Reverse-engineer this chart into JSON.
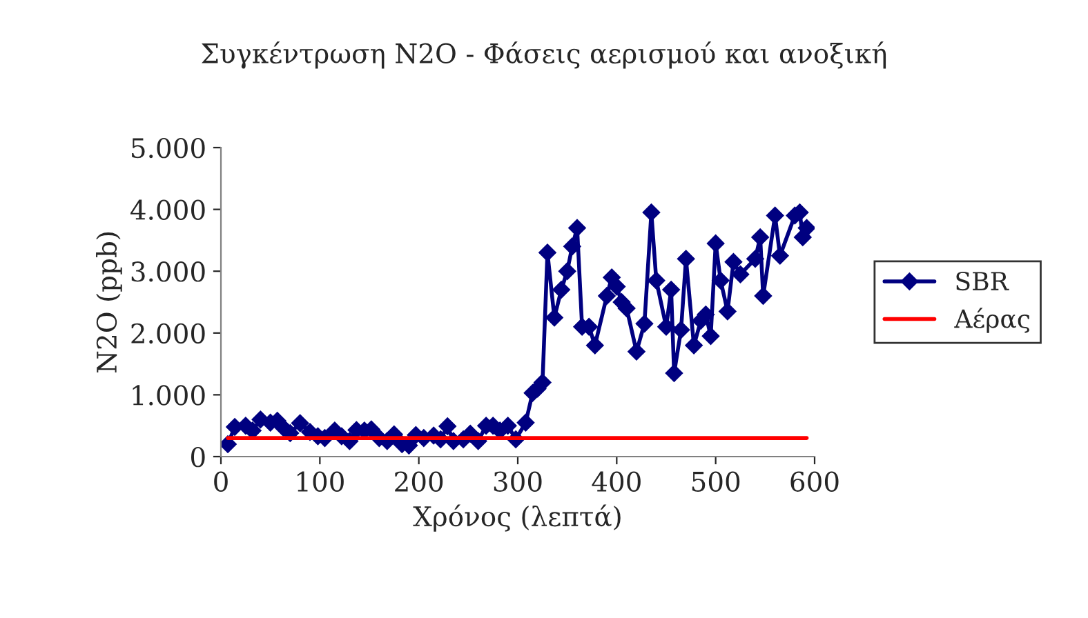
{
  "chart_data": {
    "type": "line",
    "title": "Συγκέντρωση N2O - Φάσεις αερισμού και ανοξική",
    "xlabel": "Χρόνος (λεπτά)",
    "ylabel": "N2O (ppb)",
    "xlim": [
      0,
      600
    ],
    "xticks": [
      0,
      100,
      200,
      300,
      400,
      500,
      600
    ],
    "ylim": [
      0,
      5000
    ],
    "yticks": [
      0,
      {
        "value": 1000,
        "label": "1.000"
      },
      {
        "value": 2000,
        "label": "2.000"
      },
      {
        "value": 3000,
        "label": "3.000"
      },
      {
        "value": 4000,
        "label": "4.000"
      },
      {
        "value": 5000,
        "label": "5.000"
      }
    ],
    "grid": false,
    "legend": "right",
    "series": [
      {
        "name": "SBR",
        "color": "#000080",
        "marker": "diamond",
        "x": [
          7,
          14,
          25,
          32,
          40,
          50,
          57,
          63,
          70,
          80,
          90,
          98,
          105,
          115,
          122,
          130,
          137,
          145,
          152,
          160,
          168,
          175,
          183,
          190,
          197,
          205,
          215,
          222,
          229,
          235,
          245,
          252,
          260,
          268,
          275,
          282,
          290,
          298,
          308,
          315,
          320,
          325,
          330,
          337,
          344,
          350,
          355,
          360,
          365,
          372,
          378,
          390,
          395,
          400,
          405,
          410,
          420,
          428,
          435,
          440,
          450,
          455,
          458,
          465,
          470,
          478,
          485,
          490,
          495,
          500,
          505,
          512,
          518,
          525,
          540,
          545,
          548,
          560,
          565,
          580,
          585,
          588,
          592
        ],
        "values": [
          200,
          480,
          500,
          420,
          600,
          550,
          580,
          470,
          380,
          540,
          400,
          330,
          300,
          420,
          330,
          250,
          430,
          420,
          440,
          300,
          250,
          360,
          200,
          180,
          350,
          300,
          340,
          280,
          490,
          250,
          280,
          370,
          250,
          500,
          500,
          420,
          500,
          280,
          550,
          1030,
          1100,
          1200,
          3300,
          2250,
          2700,
          3000,
          3400,
          3700,
          2100,
          2100,
          1800,
          2600,
          2900,
          2750,
          2500,
          2400,
          1700,
          2150,
          3950,
          2850,
          2100,
          2700,
          1350,
          2050,
          3200,
          1800,
          2200,
          2300,
          1950,
          3450,
          2850,
          2350,
          3150,
          2950,
          3200,
          3550,
          2600,
          3900,
          3250,
          3900,
          3950,
          3550,
          3700
        ]
      },
      {
        "name": "Αέρας",
        "color": "#ff0000",
        "marker": "none",
        "x": [
          7,
          592
        ],
        "values": [
          300,
          300
        ]
      }
    ]
  }
}
